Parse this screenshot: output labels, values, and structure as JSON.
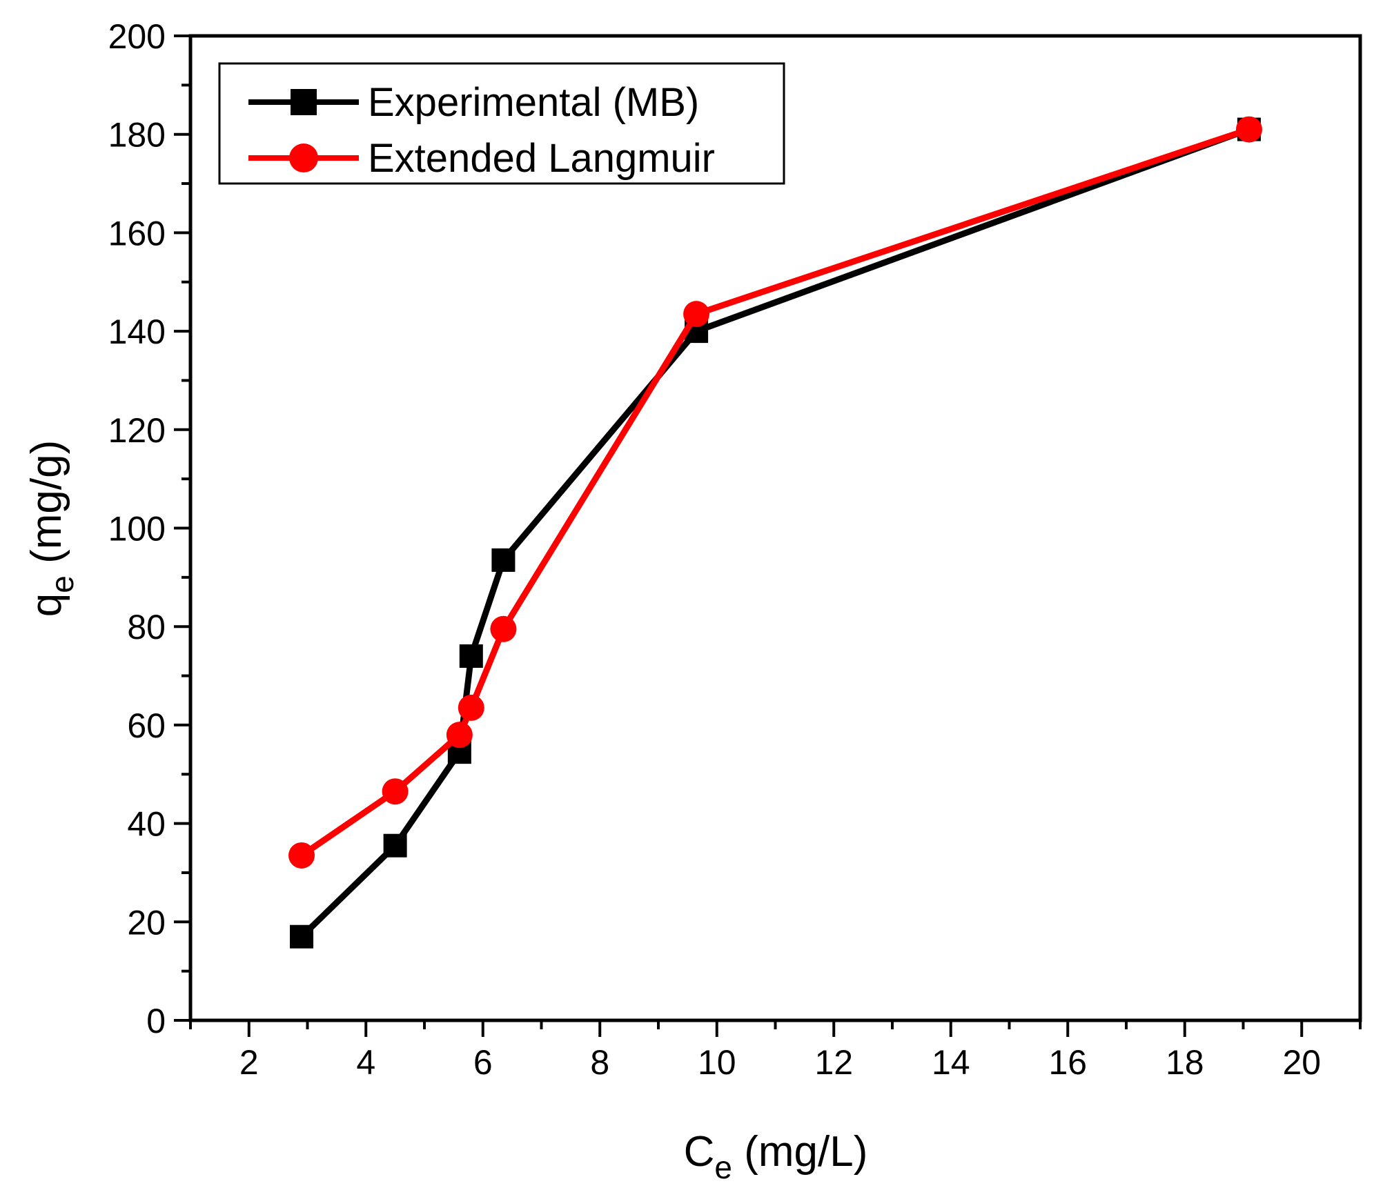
{
  "chart_data": {
    "type": "line",
    "title": "",
    "xlabel_main": "C",
    "xlabel_sub": "e",
    "xlabel_unit": " (mg/L)",
    "ylabel_main": "q",
    "ylabel_sub": "e",
    "ylabel_unit": " (mg/g)",
    "xlim": [
      1,
      21
    ],
    "ylim": [
      0,
      200
    ],
    "x_ticks": [
      2,
      4,
      6,
      8,
      10,
      12,
      14,
      16,
      18,
      20
    ],
    "y_ticks": [
      0,
      20,
      40,
      60,
      80,
      100,
      120,
      140,
      160,
      180,
      200
    ],
    "grid": false,
    "legend_position": "top-left",
    "series": [
      {
        "name": "Experimental (MB)",
        "color": "#000000",
        "marker": "square",
        "x": [
          2.9,
          4.5,
          5.6,
          5.8,
          6.35,
          9.65,
          19.1
        ],
        "y": [
          17,
          35.5,
          54.5,
          74,
          93.5,
          140,
          181
        ]
      },
      {
        "name": "Extended Langmuir",
        "color": "#ff0000",
        "marker": "circle",
        "x": [
          2.9,
          4.5,
          5.6,
          5.8,
          6.35,
          9.65,
          19.1
        ],
        "y": [
          33.5,
          46.5,
          58,
          63.5,
          79.5,
          143.5,
          181
        ]
      }
    ]
  }
}
